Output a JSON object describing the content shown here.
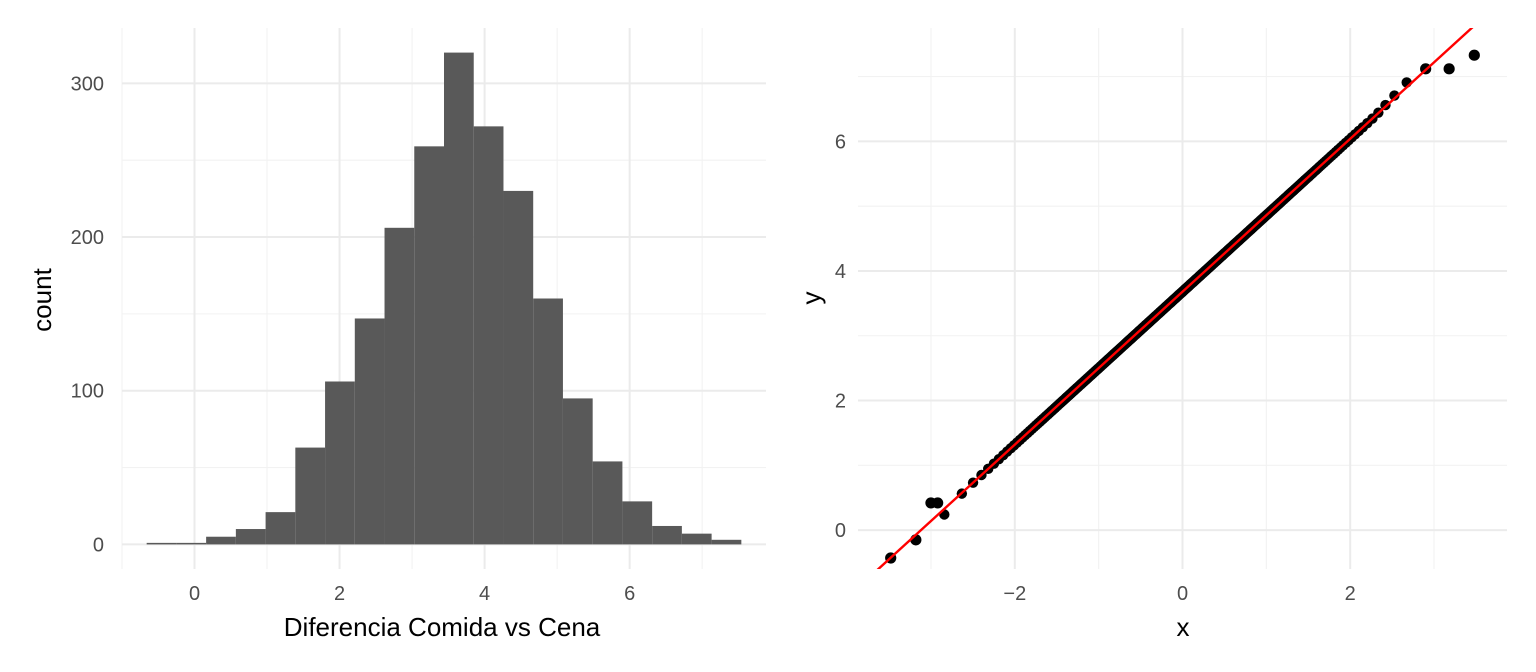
{
  "colors": {
    "bar_fill": "#595959",
    "point_fill": "#000000",
    "line": "#ff0000",
    "grid": "#ebebeb",
    "tick_text": "#4d4d4d"
  },
  "chart_data": [
    {
      "type": "bar",
      "subtype": "histogram",
      "xlabel": "Diferencia Comida vs Cena",
      "ylabel": "count",
      "bin_width": 0.41,
      "bins": [
        {
          "x0": -0.66,
          "x1": -0.25,
          "count": 1
        },
        {
          "x0": -0.25,
          "x1": 0.16,
          "count": 1
        },
        {
          "x0": 0.16,
          "x1": 0.57,
          "count": 5
        },
        {
          "x0": 0.57,
          "x1": 0.98,
          "count": 10
        },
        {
          "x0": 0.98,
          "x1": 1.39,
          "count": 21
        },
        {
          "x0": 1.39,
          "x1": 1.8,
          "count": 63
        },
        {
          "x0": 1.8,
          "x1": 2.21,
          "count": 106
        },
        {
          "x0": 2.21,
          "x1": 2.62,
          "count": 147
        },
        {
          "x0": 2.62,
          "x1": 3.03,
          "count": 206
        },
        {
          "x0": 3.03,
          "x1": 3.44,
          "count": 259
        },
        {
          "x0": 3.44,
          "x1": 3.85,
          "count": 320
        },
        {
          "x0": 3.85,
          "x1": 4.26,
          "count": 272
        },
        {
          "x0": 4.26,
          "x1": 4.67,
          "count": 230
        },
        {
          "x0": 4.67,
          "x1": 5.08,
          "count": 160
        },
        {
          "x0": 5.08,
          "x1": 5.49,
          "count": 95
        },
        {
          "x0": 5.49,
          "x1": 5.9,
          "count": 54
        },
        {
          "x0": 5.9,
          "x1": 6.31,
          "count": 28
        },
        {
          "x0": 6.31,
          "x1": 6.72,
          "count": 12
        },
        {
          "x0": 6.72,
          "x1": 7.13,
          "count": 7
        },
        {
          "x0": 7.13,
          "x1": 7.54,
          "count": 3
        }
      ],
      "xlim": [
        -1.0,
        7.88
      ],
      "ylim": [
        -16,
        336
      ],
      "xticks": [
        0,
        2,
        4,
        6
      ],
      "yticks": [
        0,
        100,
        200,
        300
      ],
      "grid": true,
      "legend": "none"
    },
    {
      "type": "scatter",
      "subtype": "qq-plot",
      "xlabel": "x",
      "ylabel": "y",
      "reference_line": {
        "intercept": 3.68,
        "slope": 1.18
      },
      "n_points": 2000,
      "sample_mean": 3.68,
      "sample_sd": 1.18,
      "outlier_points": [
        {
          "x": -3.48,
          "y": -0.43
        },
        {
          "x": -3.18,
          "y": -0.15
        },
        {
          "x": -3.0,
          "y": 0.42
        },
        {
          "x": -2.92,
          "y": 0.42
        },
        {
          "x": 2.9,
          "y": 7.12
        },
        {
          "x": 3.18,
          "y": 7.12
        },
        {
          "x": 3.48,
          "y": 7.33
        }
      ],
      "xlim": [
        -3.87,
        3.87
      ],
      "ylim": [
        -0.6,
        7.75
      ],
      "xticks": [
        -2,
        0,
        2
      ],
      "yticks": [
        0,
        2,
        4,
        6
      ],
      "grid": true,
      "legend": "none"
    }
  ]
}
